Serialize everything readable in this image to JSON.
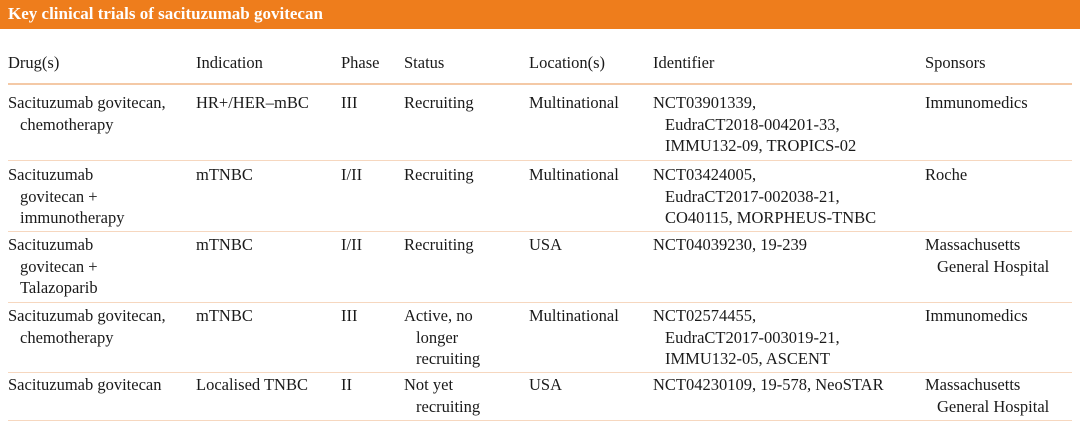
{
  "title": "Key clinical trials of sacituzumab govitecan",
  "columns": [
    "Drug(s)",
    "Indication",
    "Phase",
    "Status",
    "Location(s)",
    "Identifier",
    "Sponsors"
  ],
  "rows": [
    [
      [
        "Sacituzumab govitecan,",
        "chemotherapy"
      ],
      [
        "HR+/HER–mBC"
      ],
      [
        "III"
      ],
      [
        "Recruiting"
      ],
      [
        "Multinational"
      ],
      [
        "NCT03901339,",
        "EudraCT2018-004201-33,",
        "IMMU132-09, TROPICS-02"
      ],
      [
        "Immunomedics"
      ]
    ],
    [
      [
        "Sacituzumab",
        "govitecan +",
        "immunotherapy"
      ],
      [
        "mTNBC"
      ],
      [
        "I/II"
      ],
      [
        "Recruiting"
      ],
      [
        "Multinational"
      ],
      [
        "NCT03424005,",
        "EudraCT2017-002038-21,",
        "CO40115, MORPHEUS-TNBC"
      ],
      [
        "Roche"
      ]
    ],
    [
      [
        "Sacituzumab",
        "govitecan +",
        "Talazoparib"
      ],
      [
        "mTNBC"
      ],
      [
        "I/II"
      ],
      [
        "Recruiting"
      ],
      [
        "USA"
      ],
      [
        "NCT04039230, 19-239"
      ],
      [
        "Massachusetts",
        "General Hospital"
      ]
    ],
    [
      [
        "Sacituzumab govitecan,",
        "chemotherapy"
      ],
      [
        "mTNBC"
      ],
      [
        "III"
      ],
      [
        "Active, no",
        "longer",
        "recruiting"
      ],
      [
        "Multinational"
      ],
      [
        "NCT02574455,",
        "EudraCT2017-003019-21,",
        "IMMU132-05, ASCENT"
      ],
      [
        "Immunomedics"
      ]
    ],
    [
      [
        "Sacituzumab govitecan"
      ],
      [
        "Localised TNBC"
      ],
      [
        "II"
      ],
      [
        "Not yet",
        "recruiting"
      ],
      [
        "USA"
      ],
      [
        "NCT04230109, 19-578, NeoSTAR"
      ],
      [
        "Massachusetts",
        "General Hospital"
      ]
    ]
  ],
  "colors": {
    "accent": "#ee7d1c",
    "rule": "#f6d7bf"
  }
}
